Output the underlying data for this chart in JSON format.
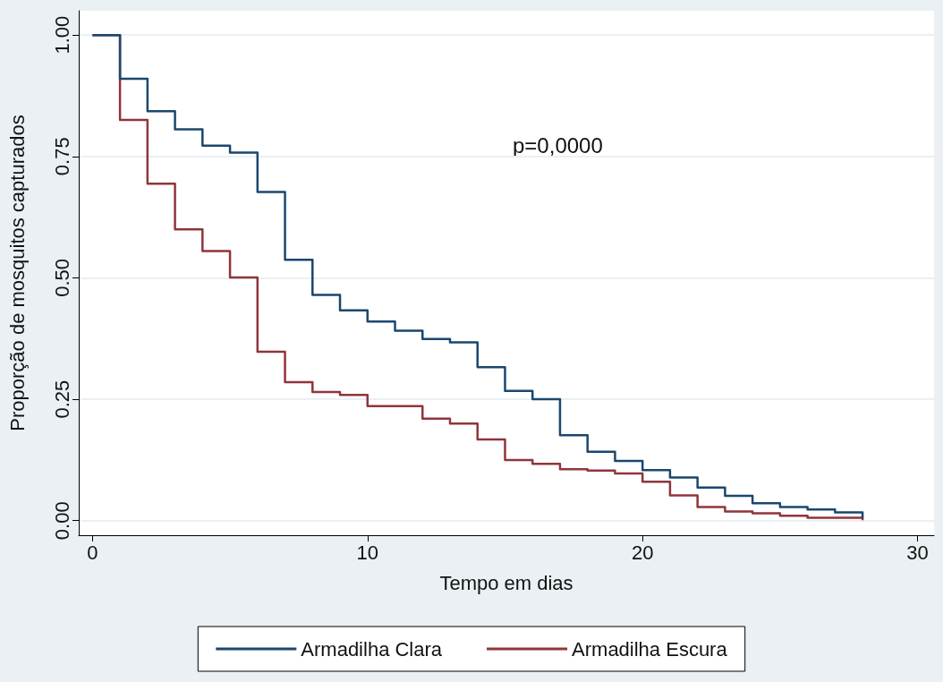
{
  "chart_data": {
    "type": "step",
    "xlabel": "Tempo em dias",
    "ylabel": "Proporção de mosquitos capturados",
    "x": [
      0,
      1,
      2,
      3,
      4,
      5,
      6,
      7,
      8,
      9,
      10,
      11,
      12,
      13,
      14,
      15,
      16,
      17,
      18,
      19,
      20,
      21,
      22,
      23,
      24,
      25,
      26,
      27,
      28
    ],
    "series": [
      {
        "name": "Armadilha Clara",
        "color": "#1a476f",
        "values": [
          1.0,
          0.91,
          0.843,
          0.806,
          0.772,
          0.758,
          0.677,
          0.537,
          0.465,
          0.433,
          0.41,
          0.391,
          0.374,
          0.367,
          0.316,
          0.267,
          0.25,
          0.176,
          0.142,
          0.123,
          0.104,
          0.089,
          0.068,
          0.051,
          0.036,
          0.028,
          0.023,
          0.017,
          0.005
        ]
      },
      {
        "name": "Armadilha Escura",
        "color": "#90353b",
        "values": [
          1.0,
          0.825,
          0.694,
          0.6,
          0.555,
          0.501,
          0.348,
          0.285,
          0.265,
          0.259,
          0.236,
          0.236,
          0.21,
          0.2,
          0.167,
          0.125,
          0.117,
          0.106,
          0.103,
          0.097,
          0.08,
          0.052,
          0.028,
          0.019,
          0.015,
          0.01,
          0.006,
          0.006,
          0.001
        ]
      }
    ],
    "xlim": [
      -0.5,
      30.6
    ],
    "xticks": [
      0,
      10,
      20,
      30
    ],
    "ylim": [
      -0.03,
      1.05
    ],
    "yticks": [
      {
        "value": 0,
        "label": "0.00"
      },
      {
        "value": 0.25,
        "label": "0.25"
      },
      {
        "value": 0.5,
        "label": "0.50"
      },
      {
        "value": 0.75,
        "label": "0.75"
      },
      {
        "value": 1,
        "label": "1.00"
      }
    ],
    "grid": "y",
    "legend": "bottom",
    "marker": "none",
    "line_style": "solid",
    "annotations": [
      "p=0,0000"
    ]
  }
}
